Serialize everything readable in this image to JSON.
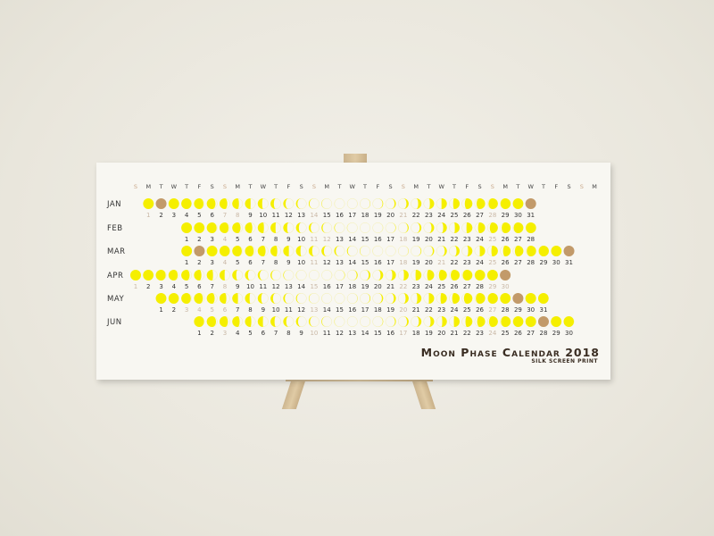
{
  "calendar": {
    "title": "Moon Phase Calendar 2018",
    "subtitle": "SILK SCREEN PRINT",
    "weekday_header": [
      "S",
      "M",
      "T",
      "W",
      "T",
      "F",
      "S",
      "S",
      "M",
      "T",
      "W",
      "T",
      "F",
      "S",
      "S",
      "M",
      "T",
      "W",
      "T",
      "F",
      "S",
      "S",
      "M",
      "T",
      "W",
      "T",
      "F",
      "S",
      "S",
      "M",
      "T",
      "W",
      "T",
      "F",
      "S",
      "S",
      "M"
    ],
    "months": [
      {
        "label": "Jan",
        "days": 31,
        "start_col": 1,
        "full_moons": [
          2,
          31
        ],
        "grey_days": [
          1,
          7,
          8,
          14,
          21,
          28
        ]
      },
      {
        "label": "Feb",
        "days": 28,
        "start_col": 4,
        "full_moons": [],
        "grey_days": [
          4,
          11,
          12,
          18,
          25
        ]
      },
      {
        "label": "Mar",
        "days": 31,
        "start_col": 4,
        "full_moons": [
          2,
          31
        ],
        "grey_days": [
          4,
          11,
          18,
          21,
          25
        ]
      },
      {
        "label": "Apr",
        "days": 30,
        "start_col": 0,
        "full_moons": [
          30
        ],
        "grey_days": [
          1,
          8,
          15,
          22,
          29,
          30
        ]
      },
      {
        "label": "May",
        "days": 31,
        "start_col": 2,
        "full_moons": [
          29
        ],
        "grey_days": [
          3,
          4,
          5,
          6,
          13,
          20,
          27
        ]
      },
      {
        "label": "Jun",
        "days": 30,
        "start_col": 5,
        "full_moons": [
          28
        ],
        "grey_days": [
          3,
          10,
          17,
          24
        ]
      }
    ],
    "new_moons": [
      "Jan 17",
      "Feb 16",
      "Mar 17",
      "Apr 16",
      "May 15",
      "Jun 14"
    ]
  },
  "colors": {
    "moon": "#f5ef00",
    "full_moon": "#c29a6a",
    "text": "#333333",
    "grey_text": "#c9b8a6",
    "sunday_header": "#c9a88a"
  }
}
